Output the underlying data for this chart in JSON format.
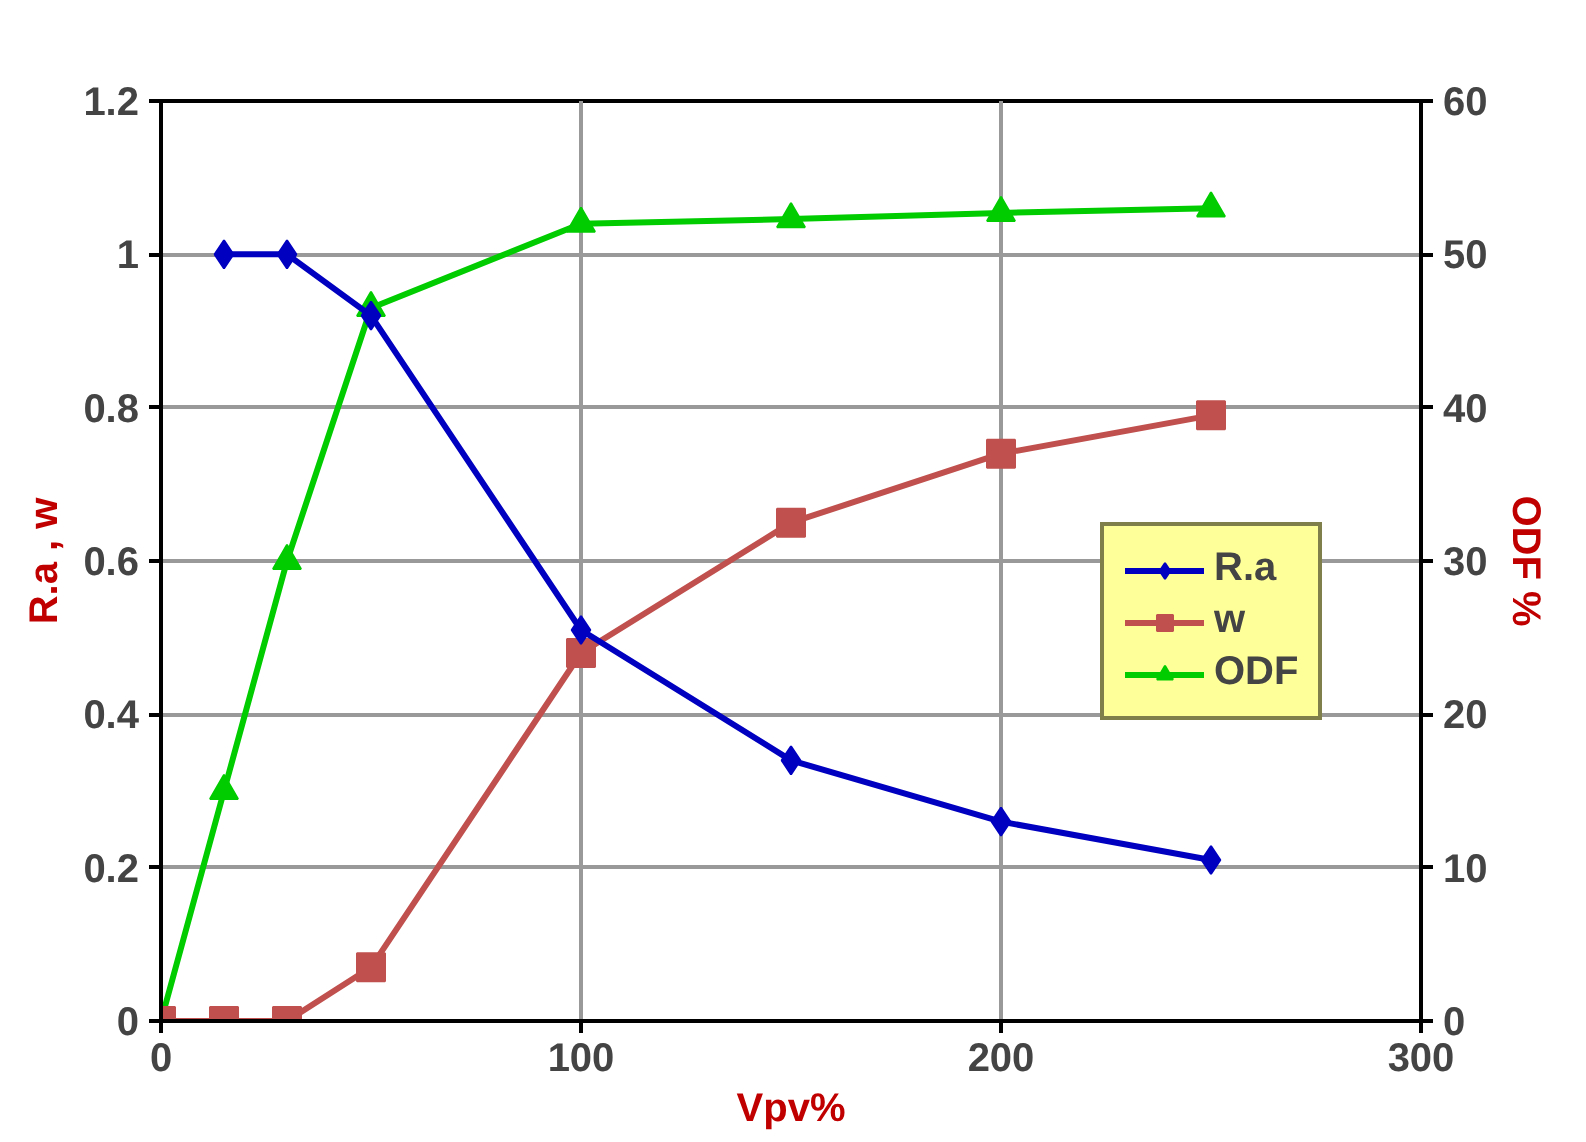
{
  "chart_data": {
    "type": "line",
    "xlabel": "Vpv%",
    "ylabel": "R.a , w",
    "y2label": "ODF %",
    "xlim": [
      0,
      300
    ],
    "xticks": [
      0,
      100,
      200,
      300
    ],
    "ylim": [
      0,
      1.2
    ],
    "yticks": [
      0,
      0.2,
      0.4,
      0.6,
      0.8,
      1,
      1.2
    ],
    "y2lim": [
      0,
      60
    ],
    "y2ticks": [
      0,
      10,
      20,
      30,
      40,
      50,
      60
    ],
    "grid": true,
    "legend": "right",
    "series": [
      {
        "name": "R.a",
        "color": "#0000c0",
        "marker": "diamond",
        "x": [
          15,
          30,
          50,
          100,
          150,
          200,
          250
        ],
        "values": [
          1,
          1,
          0.92,
          0.51,
          0.34,
          0.26,
          0.21
        ]
      },
      {
        "name": "w",
        "color": "#c0504d",
        "marker": "square",
        "x": [
          0,
          15,
          30,
          50,
          100,
          150,
          200,
          250
        ],
        "values": [
          0,
          0,
          0,
          0.07,
          0.48,
          0.65,
          0.74,
          0.79
        ]
      },
      {
        "name": "ODF",
        "color": "#00cc00",
        "marker": "triangle",
        "axis": "y2",
        "x": [
          0,
          15,
          30,
          50,
          100,
          150,
          200,
          250
        ],
        "values": [
          0,
          15,
          30,
          46.5,
          52,
          52.3,
          52.7,
          53
        ]
      }
    ]
  }
}
